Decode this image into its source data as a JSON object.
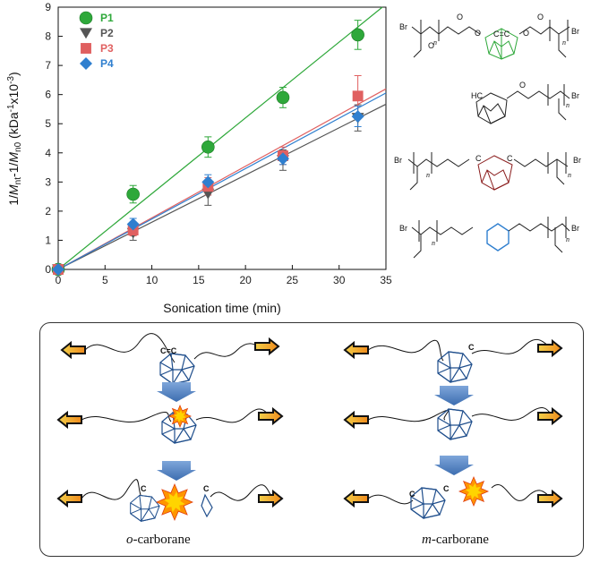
{
  "chart_data": {
    "type": "scatter",
    "xlabel": "Sonication time (min)",
    "ylabel_main": "1/",
    "ylabel_parts": [
      "M",
      "nt",
      "-1/",
      "M",
      "n0",
      " (kDa",
      "-1",
      "x10",
      "-3",
      ")"
    ],
    "xlim": [
      0,
      35
    ],
    "ylim": [
      0,
      9
    ],
    "xticks": [
      "0",
      "5",
      "10",
      "15",
      "20",
      "25",
      "30",
      "35"
    ],
    "yticks": [
      "0",
      "1",
      "2",
      "3",
      "4",
      "5",
      "6",
      "7",
      "8",
      "9"
    ],
    "series": [
      {
        "name": "P1",
        "color": "#2ea83a",
        "marker": "circle",
        "x": [
          0,
          8,
          16,
          24,
          32
        ],
        "y": [
          0,
          2.58,
          4.2,
          5.9,
          8.05
        ],
        "err": [
          0,
          0.3,
          0.35,
          0.35,
          0.5
        ],
        "fit_slope": 0.26
      },
      {
        "name": "P2",
        "color": "#555555",
        "marker": "triangle-down",
        "x": [
          0,
          8,
          16,
          24,
          32
        ],
        "y": [
          0,
          1.25,
          2.6,
          3.75,
          5.2
        ],
        "err": [
          0,
          0.25,
          0.4,
          0.35,
          0.45
        ],
        "fit_slope": 0.162
      },
      {
        "name": "P3",
        "color": "#e06060",
        "marker": "square",
        "x": [
          0,
          8,
          16,
          24,
          32
        ],
        "y": [
          0,
          1.35,
          2.85,
          3.9,
          5.95
        ],
        "err": [
          0,
          0.2,
          0.3,
          0.3,
          0.7
        ],
        "fit_slope": 0.177
      },
      {
        "name": "P4",
        "color": "#2f7fcf",
        "marker": "diamond",
        "x": [
          0,
          8,
          16,
          24,
          32
        ],
        "y": [
          0,
          1.55,
          3.0,
          3.8,
          5.25
        ],
        "err": [
          0,
          0.2,
          0.25,
          0.2,
          0.35
        ],
        "fit_slope": 0.173
      }
    ],
    "legend_position": "top-left"
  },
  "structures": {
    "p1": {
      "br_left": "Br",
      "br_right": "Br",
      "cc": "C=C",
      "n": "n"
    },
    "p2": {
      "hc": "HC",
      "n": "n",
      "br": "Br"
    },
    "p3": {
      "br_left": "Br",
      "br_right": "Br",
      "c1": "C",
      "c2": "C",
      "n": "n"
    },
    "p4": {
      "br_left": "Br",
      "br_right": "Br",
      "n": "n"
    }
  },
  "mechanism": {
    "left_caption_italic": "o",
    "left_caption_rest": "-carborane",
    "right_caption_italic": "m",
    "right_caption_rest": "-carborane",
    "cc_label": "C=C",
    "c_label": "C",
    "colors": {
      "cage": "#1f4e8c",
      "arrow_fill": "#f7b21b",
      "burst": "#ff9500",
      "burst_inner": "#ffd400",
      "down_arrow": "#4f84c6"
    }
  }
}
